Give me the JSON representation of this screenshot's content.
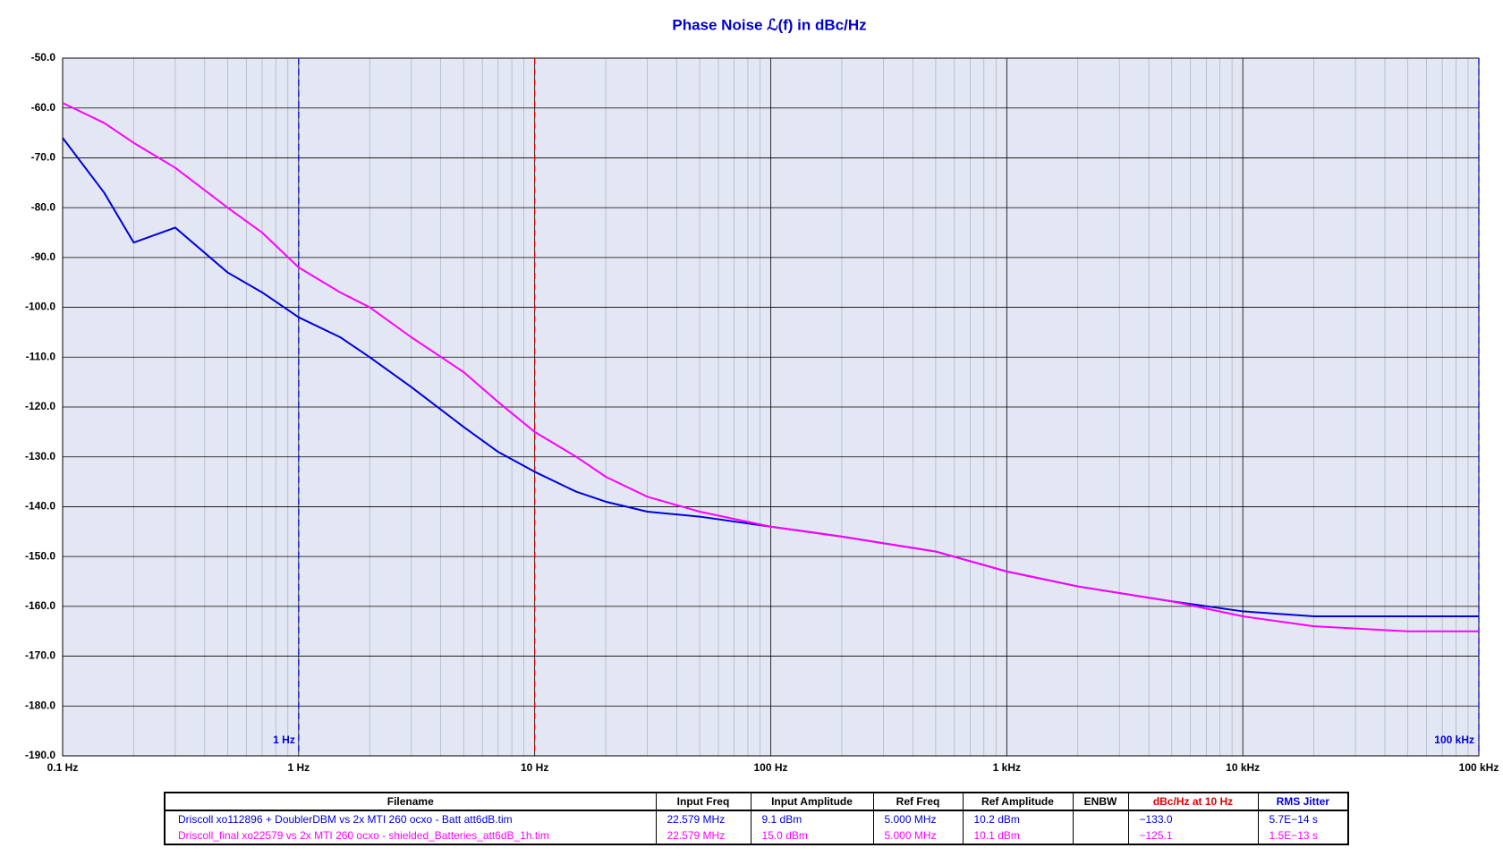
{
  "chart_data": {
    "type": "line",
    "title": "Phase Noise ℒ(f) in dBc/Hz",
    "x": [
      0.1,
      0.15,
      0.2,
      0.3,
      0.5,
      0.7,
      1,
      1.5,
      2,
      3,
      5,
      7,
      10,
      15,
      20,
      30,
      50,
      100,
      200,
      500,
      1000,
      2000,
      5000,
      10000,
      20000,
      50000,
      100000
    ],
    "series": [
      {
        "name": "Driscoll xo112896 + DoublerDBM vs 2x MTI 260 ocxo - Batt att6dB.tim",
        "color": "#0000dd",
        "values": [
          -66,
          -77,
          -87,
          -84,
          -93,
          -97,
          -102,
          -106,
          -110,
          -116,
          -124,
          -129,
          -133,
          -137,
          -139,
          -141,
          -142,
          -144,
          -146,
          -149,
          -153,
          -156,
          -159,
          -161,
          -162,
          -162,
          -162
        ]
      },
      {
        "name": "Driscoll_final xo22579 vs 2x MTI 260 ocxo - shielded_Batteries_att6dB_1h.tim",
        "color": "#ff00ff",
        "values": [
          -59,
          -63,
          -67,
          -72,
          -80,
          -85,
          -92,
          -97,
          -100,
          -106,
          -113,
          -119,
          -125,
          -130,
          -134,
          -138,
          -141,
          -144,
          -146,
          -149,
          -153,
          -156,
          -159,
          -162,
          -164,
          -165,
          -165
        ]
      }
    ],
    "log_x": true,
    "minor_grid": true,
    "grid": true,
    "xlim": [
      0.1,
      100000
    ],
    "ylim": [
      -190,
      -50
    ],
    "xticks": [
      {
        "value": 0.1,
        "label": "0.1 Hz"
      },
      {
        "value": 1,
        "label": "1 Hz"
      },
      {
        "value": 10,
        "label": "10 Hz"
      },
      {
        "value": 100,
        "label": "100 Hz"
      },
      {
        "value": 1000,
        "label": "1 kHz"
      },
      {
        "value": 10000,
        "label": "10 kHz"
      },
      {
        "value": 100000,
        "label": "100 kHz"
      }
    ],
    "yticks": [
      {
        "value": -50,
        "label": "-50.0"
      },
      {
        "value": -60,
        "label": "-60.0"
      },
      {
        "value": -70,
        "label": "-70.0"
      },
      {
        "value": -80,
        "label": "-80.0"
      },
      {
        "value": -90,
        "label": "-90.0"
      },
      {
        "value": -100,
        "label": "-100.0"
      },
      {
        "value": -110,
        "label": "-110.0"
      },
      {
        "value": -120,
        "label": "-120.0"
      },
      {
        "value": -130,
        "label": "-130.0"
      },
      {
        "value": -140,
        "label": "-140.0"
      },
      {
        "value": -150,
        "label": "-150.0"
      },
      {
        "value": -160,
        "label": "-160.0"
      },
      {
        "value": -170,
        "label": "-170.0"
      },
      {
        "value": -180,
        "label": "-180.0"
      },
      {
        "value": -190,
        "label": "-190.0"
      }
    ],
    "markers": [
      {
        "x": 1,
        "label": "1 Hz",
        "color": "#0000dd"
      },
      {
        "x": 10,
        "color": "#dd0000"
      },
      {
        "x": 100000,
        "label": "100 kHz",
        "color": "#0000dd"
      }
    ]
  },
  "table": {
    "columns": [
      "Filename",
      "Input Freq",
      "Input Amplitude",
      "Ref Freq",
      "Ref Amplitude",
      "ENBW",
      "dBc/Hz at 10 Hz",
      "RMS Jitter"
    ],
    "rows": [
      [
        "Driscoll xo112896 + DoublerDBM vs 2x MTI 260 ocxo - Batt att6dB.tim",
        "22.579 MHz",
        "9.1 dBm",
        "5.000 MHz",
        "10.2 dBm",
        null,
        "−133.0",
        "5.7E−14 s"
      ],
      [
        "Driscoll_final xo22579 vs 2x MTI 260 ocxo - shielded_Batteries_att6dB_1h.tim",
        "22.579 MHz",
        "15.0 dBm",
        "5.000 MHz",
        "10.1 dBm",
        null,
        "−125.1",
        "1.5E−13 s"
      ]
    ]
  }
}
